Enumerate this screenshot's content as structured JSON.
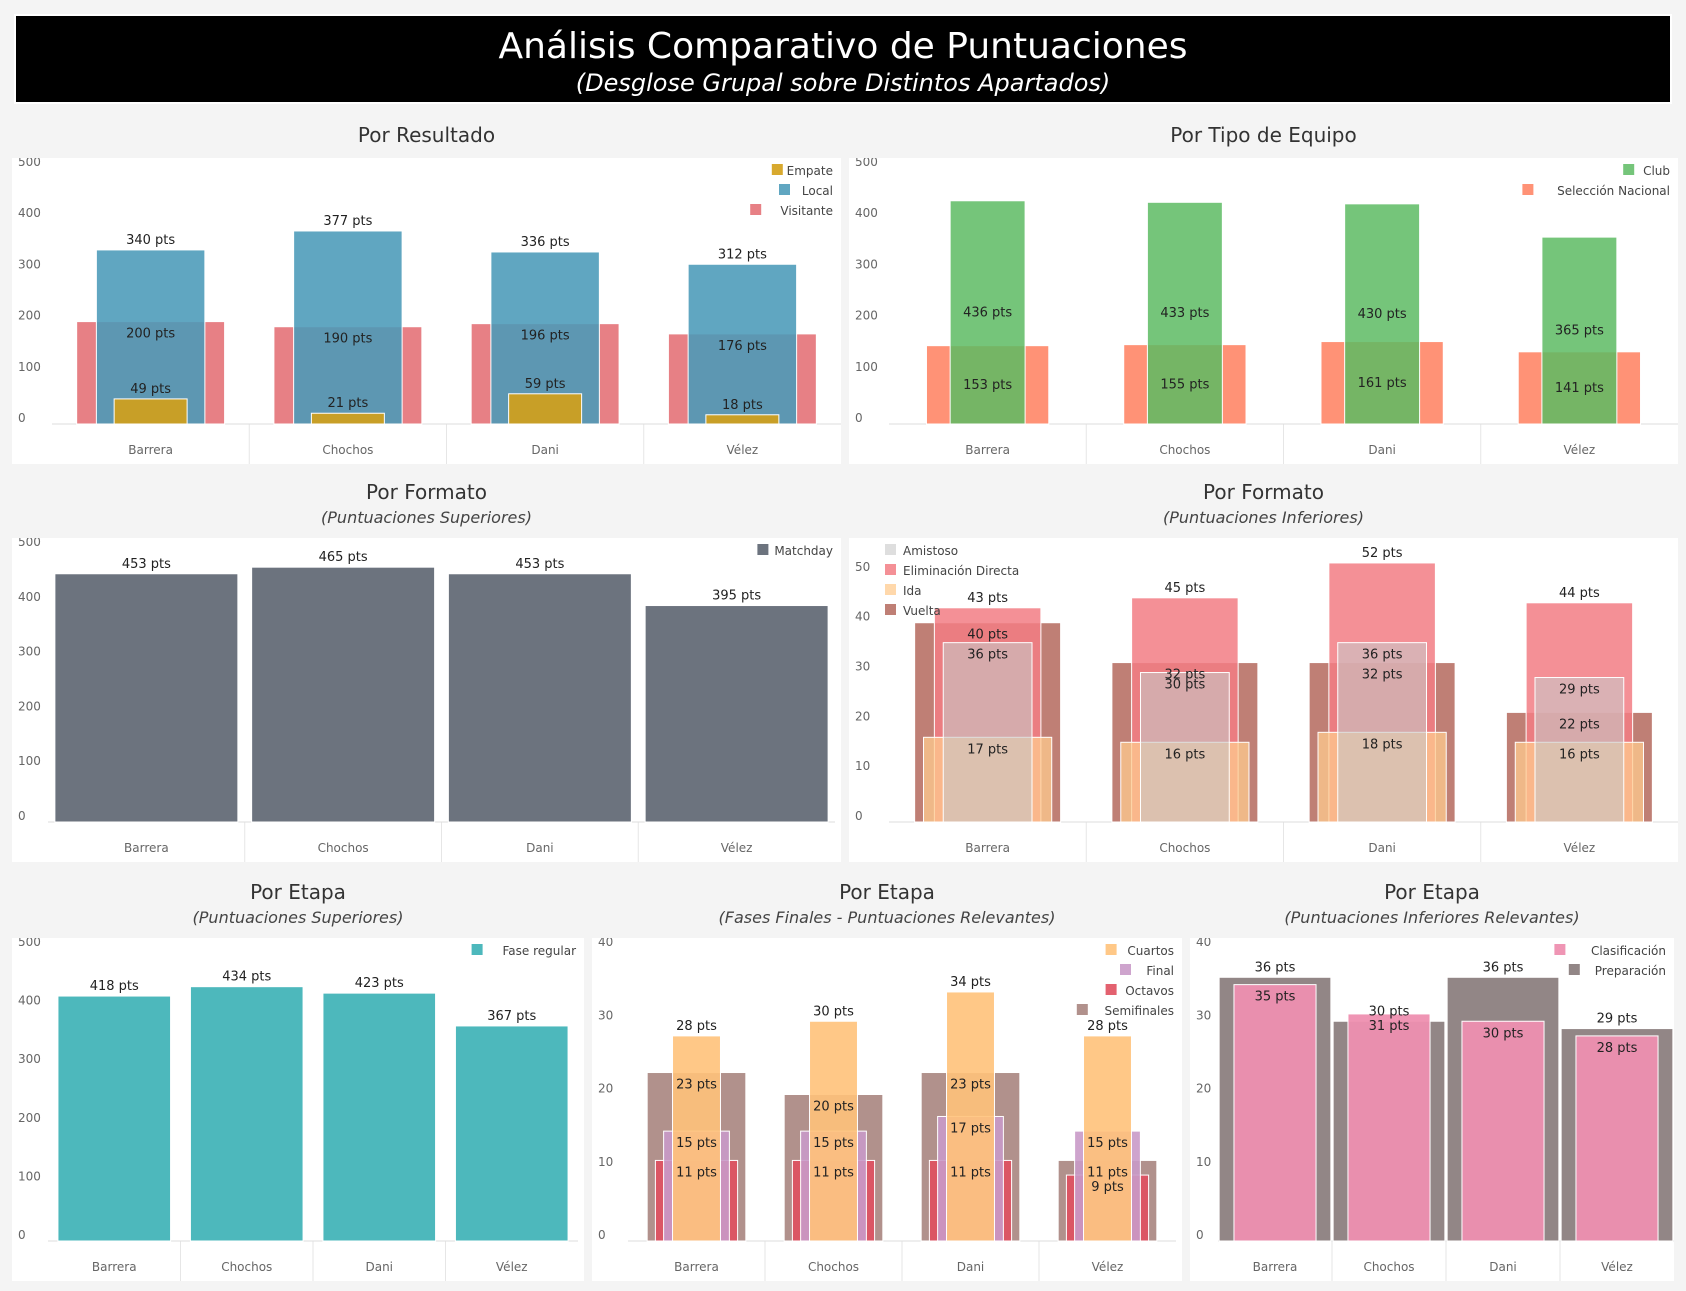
{
  "header": {
    "title": "Análisis Comparativo de Puntuaciones",
    "subtitle": "(Desglose Grupal sobre Distintos Apartados)"
  },
  "panels": {
    "p1": {
      "title": "Por Resultado",
      "subtitle": ""
    },
    "p2": {
      "title": "Por Tipo de Equipo",
      "subtitle": ""
    },
    "p3": {
      "title": "Por Formato",
      "subtitle": "(Puntuaciones Superiores)"
    },
    "p4": {
      "title": "Por Formato",
      "subtitle": "(Puntuaciones Inferiores)"
    },
    "p5": {
      "title": "Por Etapa",
      "subtitle": "(Puntuaciones Superiores)"
    },
    "p6": {
      "title": "Por Etapa",
      "subtitle": "(Fases Finales - Puntuaciones Relevantes)"
    },
    "p7": {
      "title": "Por Etapa",
      "subtitle": "(Puntuaciones Inferiores Relevantes)"
    }
  },
  "chart_data": [
    {
      "id": "p1",
      "type": "bar",
      "title": "Por Resultado",
      "categories": [
        "Barrera",
        "Chochos",
        "Dani",
        "Vélez"
      ],
      "ylim": [
        0,
        500
      ],
      "yticks": [
        0,
        100,
        200,
        300,
        400,
        500
      ],
      "legend_position": "top-right",
      "grid": false,
      "series": [
        {
          "name": "Empate",
          "color": "#D4A017",
          "values": [
            49,
            21,
            59,
            18
          ]
        },
        {
          "name": "Local",
          "color": "#4A9AB8",
          "values": [
            340,
            377,
            336,
            312
          ]
        },
        {
          "name": "Visitante",
          "color": "#E36A70",
          "values": [
            200,
            190,
            196,
            176
          ]
        }
      ]
    },
    {
      "id": "p2",
      "type": "bar",
      "title": "Por Tipo de Equipo",
      "categories": [
        "Barrera",
        "Chochos",
        "Dani",
        "Vélez"
      ],
      "ylim": [
        0,
        500
      ],
      "yticks": [
        0,
        100,
        200,
        300,
        400,
        500
      ],
      "legend_position": "top-right",
      "grid": false,
      "series": [
        {
          "name": "Club",
          "color": "#5DBB63",
          "values": [
            436,
            433,
            430,
            365
          ]
        },
        {
          "name": "Selección Nacional",
          "color": "#FF7F5E",
          "values": [
            153,
            155,
            161,
            141
          ]
        }
      ]
    },
    {
      "id": "p3",
      "type": "bar",
      "title": "Por Formato",
      "categories": [
        "Barrera",
        "Chochos",
        "Dani",
        "Vélez"
      ],
      "ylim": [
        0,
        500
      ],
      "yticks": [
        0,
        100,
        200,
        300,
        400,
        500
      ],
      "legend_position": "top-right",
      "grid": false,
      "series": [
        {
          "name": "Matchday",
          "color": "#6C737E",
          "values": [
            453,
            465,
            453,
            395
          ]
        }
      ]
    },
    {
      "id": "p4",
      "type": "bar",
      "title": "Por Formato",
      "categories": [
        "Barrera",
        "Chochos",
        "Dani",
        "Vélez"
      ],
      "ylim": [
        0,
        55
      ],
      "yticks": [
        0,
        10,
        20,
        30,
        40,
        50
      ],
      "legend_position": "top-left",
      "grid": false,
      "series": [
        {
          "name": "Amistoso",
          "color": "#C8C8C8",
          "values": [
            36,
            30,
            36,
            29
          ]
        },
        {
          "name": "Eliminación Directa",
          "color": "#F27C84",
          "values": [
            43,
            45,
            52,
            44
          ]
        },
        {
          "name": "Ida",
          "color": "#FFCB8F",
          "values": [
            17,
            16,
            18,
            16
          ]
        },
        {
          "name": "Vuelta",
          "color": "#B4695D",
          "values": [
            40,
            32,
            32,
            22
          ]
        }
      ]
    },
    {
      "id": "p5",
      "type": "bar",
      "title": "Por Etapa",
      "categories": [
        "Barrera",
        "Chochos",
        "Dani",
        "Vélez"
      ],
      "ylim": [
        0,
        500
      ],
      "yticks": [
        0,
        100,
        200,
        300,
        400,
        500
      ],
      "legend_position": "top-right",
      "grid": false,
      "series": [
        {
          "name": "Fase regular",
          "color": "#4DB8BC",
          "values": [
            418,
            434,
            423,
            367
          ]
        }
      ]
    },
    {
      "id": "p6",
      "type": "bar",
      "title": "Por Etapa",
      "categories": [
        "Barrera",
        "Chochos",
        "Dani",
        "Vélez"
      ],
      "ylim": [
        0,
        40
      ],
      "yticks": [
        0,
        10,
        20,
        30,
        40
      ],
      "legend_position": "top-right",
      "grid": false,
      "series": [
        {
          "name": "Cuartos",
          "color": "#FFC27A",
          "values": [
            28,
            30,
            34,
            28
          ]
        },
        {
          "name": "Final",
          "color": "#C99AC8",
          "values": [
            15,
            15,
            17,
            15
          ]
        },
        {
          "name": "Octavos",
          "color": "#E0505F",
          "values": [
            11,
            11,
            11,
            9
          ]
        },
        {
          "name": "Semifinales",
          "color": "#A88580",
          "values": [
            23,
            20,
            23,
            11
          ]
        }
      ]
    },
    {
      "id": "p7",
      "type": "bar",
      "title": "Por Etapa",
      "categories": [
        "Barrera",
        "Chochos",
        "Dani",
        "Vélez"
      ],
      "ylim": [
        0,
        40
      ],
      "yticks": [
        0,
        10,
        20,
        30,
        40
      ],
      "legend_position": "top-right",
      "grid": false,
      "series": [
        {
          "name": "Clasificación",
          "color": "#EE8FB0",
          "values": [
            35,
            31,
            30,
            28
          ]
        },
        {
          "name": "Preparación",
          "color": "#8C8080",
          "values": [
            36,
            30,
            36,
            29
          ]
        }
      ]
    }
  ]
}
